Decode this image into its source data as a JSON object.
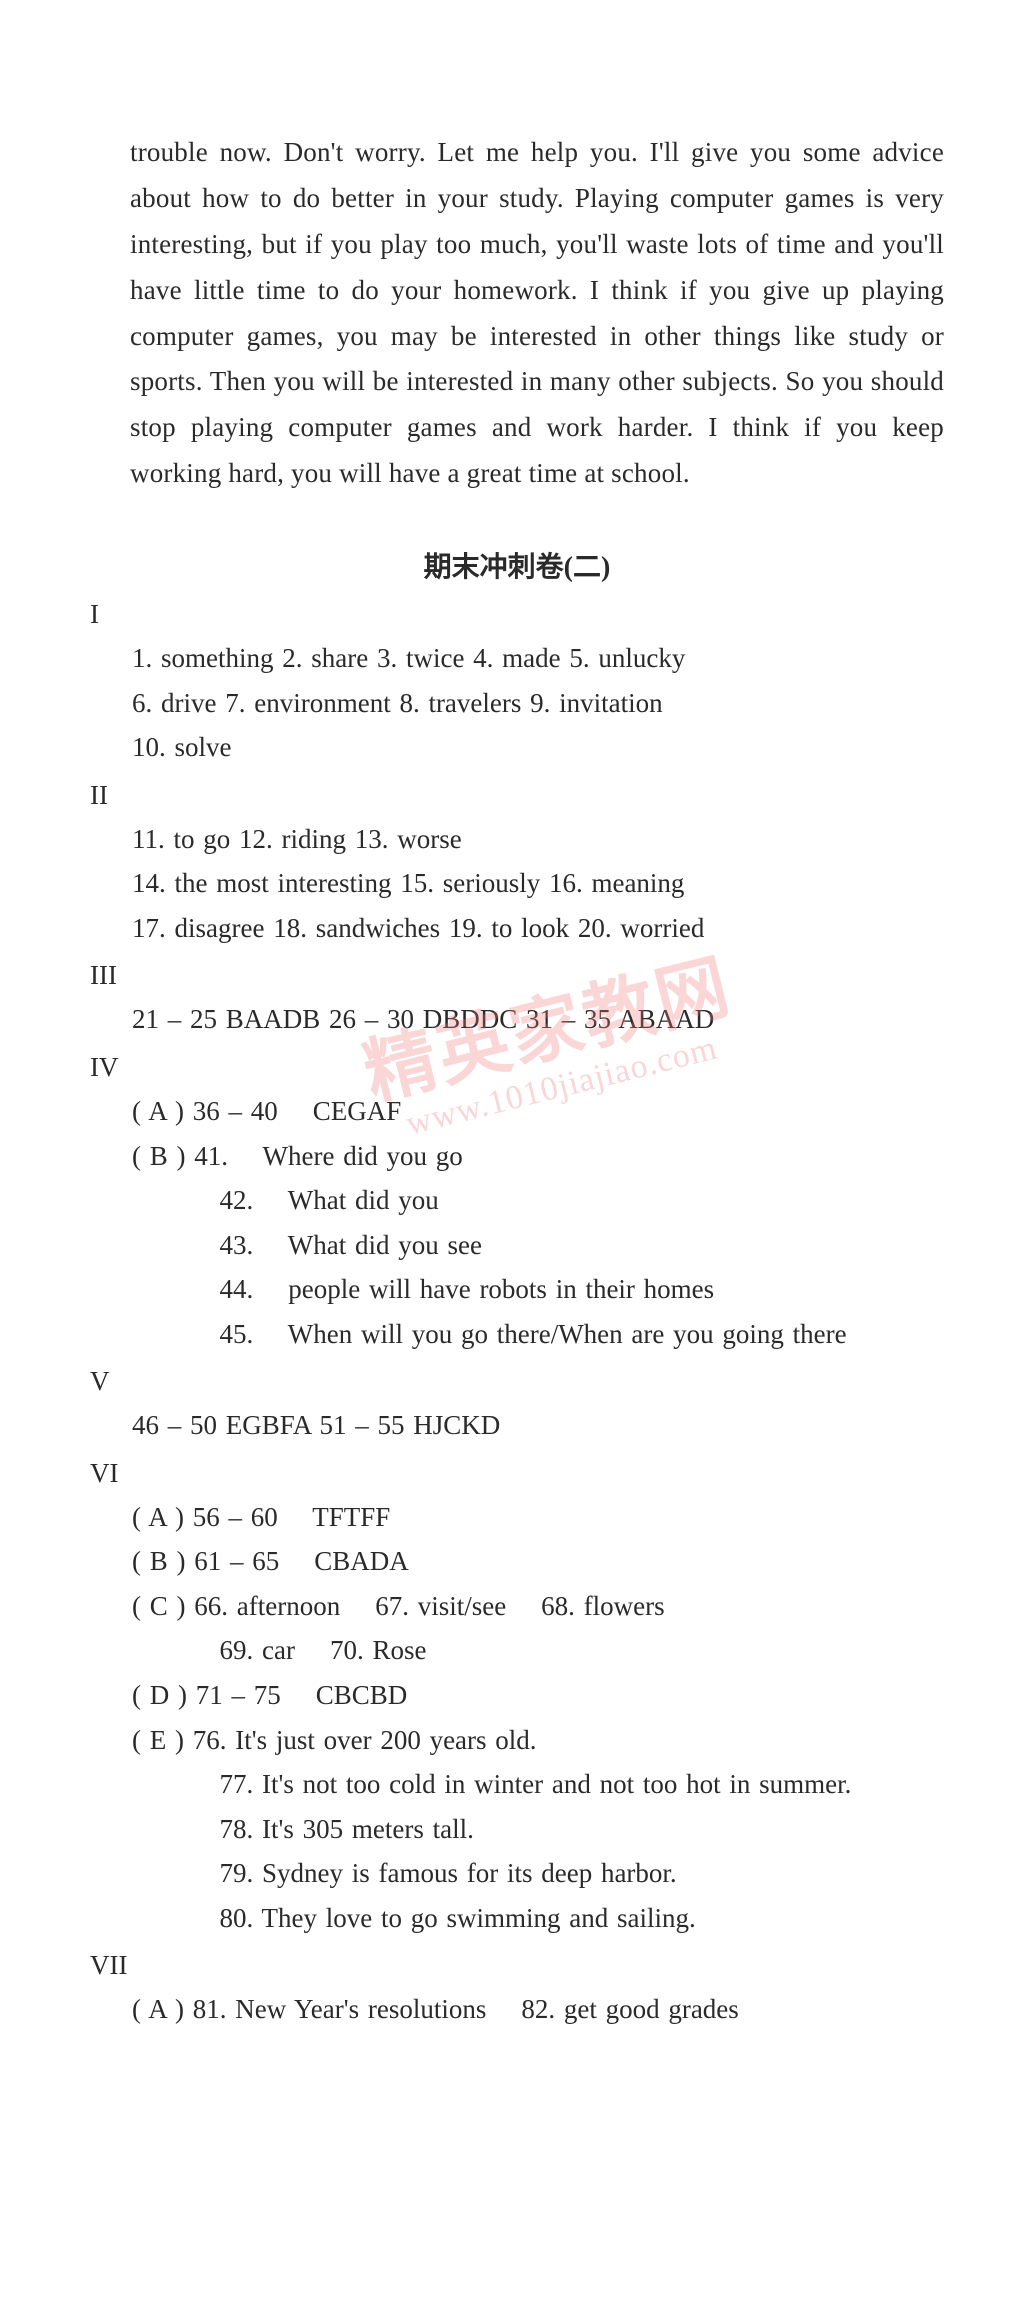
{
  "intro_paragraph": "trouble now. Don't worry. Let me help you. I'll give you some advice about how to do better in your study. Playing computer games is very interesting, but if you play too much, you'll waste lots of time and you'll have little time to do your homework. I think if you give up playing computer games, you may be interested in other things like study or sports. Then you will be interested in many other subjects. So you should stop playing computer games and work harder. I think if you keep working hard, you will have a great time at school.",
  "heading": "期末冲刺卷(二)",
  "watermark_main": "精英家教网",
  "watermark_sub": "www.1010jiajiao.com",
  "sections": {
    "s1": {
      "label": "I",
      "lines": [
        "1. something   2. share   3. twice   4. made   5. unlucky",
        "6. drive    7. environment    8. travelers    9. invitation",
        "10. solve"
      ]
    },
    "s2": {
      "label": "II",
      "lines": [
        "11. to go   12. riding   13. worse",
        "14. the most interesting   15. seriously   16. meaning",
        "17. disagree   18. sandwiches   19. to look   20. worried"
      ]
    },
    "s3": {
      "label": "III",
      "lines": [
        "21 – 25    BAADB    26 – 30    DBDDC    31 – 35    ABAAD"
      ]
    },
    "s4": {
      "label": "IV",
      "lines": [
        "( A ) 36 – 40    CEGAF",
        "( B ) 41.    Where did you go",
        "          42.    What did you",
        "          43.    What did you see",
        "          44.    people will have robots in their homes",
        "          45.    When will you go there/When are you going there"
      ]
    },
    "s5": {
      "label": "V",
      "lines": [
        "46 – 50    EGBFA    51 – 55    HJCKD"
      ]
    },
    "s6": {
      "label": "VI",
      "lines": [
        "( A ) 56 – 60    TFTFF",
        "( B ) 61 – 65    CBADA",
        "( C ) 66. afternoon    67. visit/see    68. flowers",
        "          69. car    70. Rose",
        "( D ) 71 – 75    CBCBD",
        "( E ) 76. It's just over 200 years old.",
        "          77. It's not too cold in winter and not too hot in summer.",
        "          78. It's 305 meters tall.",
        "          79. Sydney is famous for its deep harbor.",
        "          80. They love to go swimming and sailing."
      ]
    },
    "s7": {
      "label": "VII",
      "lines": [
        "( A ) 81. New Year's resolutions    82. get good grades"
      ]
    }
  }
}
